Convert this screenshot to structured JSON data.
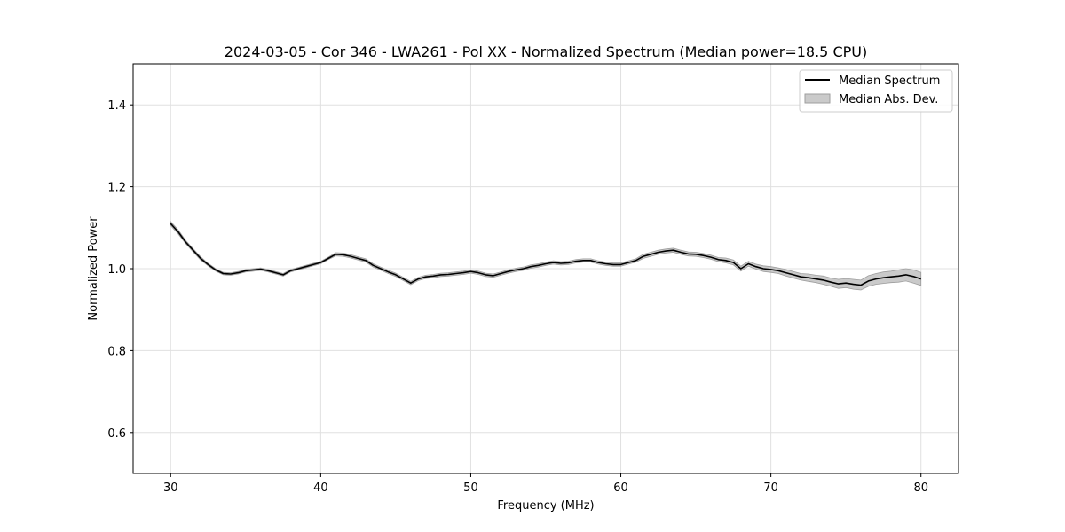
{
  "chart_data": {
    "type": "line",
    "title": "2024-03-05 - Cor 346 - LWA261 - Pol XX - Normalized Spectrum (Median power=18.5 CPU)",
    "xlabel": "Frequency (MHz)",
    "ylabel": "Normalized Power",
    "xlim": [
      27.5,
      82.5
    ],
    "ylim": [
      0.5,
      1.5
    ],
    "xticks": [
      30,
      40,
      50,
      60,
      70,
      80
    ],
    "yticks": [
      0.6,
      0.8,
      1.0,
      1.2,
      1.4
    ],
    "grid": true,
    "legend_position": "top-right",
    "legend": [
      "Median Spectrum",
      "Median Abs. Dev."
    ],
    "colors": {
      "line": "#000000",
      "band": "#9e9e9e",
      "grid": "#e0e0e0"
    },
    "series": [
      {
        "name": "Median Spectrum",
        "x": [
          30.0,
          30.5,
          31.0,
          31.5,
          32.0,
          32.5,
          33.0,
          33.5,
          34.0,
          34.5,
          35.0,
          35.5,
          36.0,
          36.5,
          37.0,
          37.5,
          38.0,
          38.5,
          39.0,
          39.5,
          40.0,
          40.5,
          41.0,
          41.5,
          42.0,
          42.5,
          43.0,
          43.5,
          44.0,
          44.5,
          45.0,
          45.5,
          46.0,
          46.5,
          47.0,
          47.5,
          48.0,
          48.5,
          49.0,
          49.5,
          50.0,
          50.5,
          51.0,
          51.5,
          52.0,
          52.5,
          53.0,
          53.5,
          54.0,
          54.5,
          55.0,
          55.5,
          56.0,
          56.5,
          57.0,
          57.5,
          58.0,
          58.5,
          59.0,
          59.5,
          60.0,
          60.5,
          61.0,
          61.5,
          62.0,
          62.5,
          63.0,
          63.5,
          64.0,
          64.5,
          65.0,
          65.5,
          66.0,
          66.5,
          67.0,
          67.5,
          68.0,
          68.5,
          69.0,
          69.5,
          70.0,
          70.5,
          71.0,
          71.5,
          72.0,
          72.5,
          73.0,
          73.5,
          74.0,
          74.5,
          75.0,
          75.5,
          76.0,
          76.5,
          77.0,
          77.5,
          78.0,
          78.5,
          79.0,
          79.5,
          80.0
        ],
        "y": [
          1.11,
          1.09,
          1.065,
          1.045,
          1.025,
          1.01,
          0.997,
          0.988,
          0.987,
          0.99,
          0.995,
          0.997,
          0.999,
          0.995,
          0.99,
          0.985,
          0.995,
          1.0,
          1.005,
          1.01,
          1.015,
          1.025,
          1.035,
          1.034,
          1.03,
          1.025,
          1.02,
          1.008,
          1.0,
          0.992,
          0.985,
          0.975,
          0.965,
          0.975,
          0.98,
          0.982,
          0.985,
          0.986,
          0.988,
          0.99,
          0.993,
          0.99,
          0.985,
          0.983,
          0.988,
          0.993,
          0.997,
          1.0,
          1.005,
          1.008,
          1.012,
          1.015,
          1.013,
          1.014,
          1.018,
          1.02,
          1.02,
          1.015,
          1.012,
          1.01,
          1.01,
          1.015,
          1.02,
          1.03,
          1.035,
          1.04,
          1.043,
          1.045,
          1.04,
          1.036,
          1.035,
          1.032,
          1.028,
          1.022,
          1.02,
          1.015,
          1.0,
          1.012,
          1.005,
          1.0,
          0.998,
          0.995,
          0.99,
          0.985,
          0.98,
          0.978,
          0.975,
          0.972,
          0.967,
          0.963,
          0.965,
          0.962,
          0.96,
          0.97,
          0.975,
          0.978,
          0.98,
          0.982,
          0.985,
          0.981,
          0.975
        ]
      }
    ],
    "band": {
      "name": "Median Abs. Dev.",
      "halfwidth": [
        0.005,
        0.005,
        0.004,
        0.004,
        0.004,
        0.003,
        0.003,
        0.003,
        0.003,
        0.003,
        0.003,
        0.003,
        0.003,
        0.003,
        0.003,
        0.003,
        0.003,
        0.003,
        0.003,
        0.003,
        0.003,
        0.003,
        0.004,
        0.004,
        0.004,
        0.004,
        0.004,
        0.004,
        0.004,
        0.004,
        0.004,
        0.004,
        0.004,
        0.004,
        0.004,
        0.004,
        0.004,
        0.004,
        0.004,
        0.004,
        0.004,
        0.004,
        0.004,
        0.004,
        0.004,
        0.004,
        0.004,
        0.004,
        0.004,
        0.004,
        0.004,
        0.004,
        0.004,
        0.004,
        0.004,
        0.004,
        0.004,
        0.004,
        0.004,
        0.004,
        0.004,
        0.004,
        0.004,
        0.005,
        0.005,
        0.005,
        0.005,
        0.005,
        0.005,
        0.005,
        0.005,
        0.005,
        0.005,
        0.005,
        0.006,
        0.006,
        0.006,
        0.006,
        0.006,
        0.007,
        0.007,
        0.007,
        0.008,
        0.008,
        0.008,
        0.009,
        0.009,
        0.01,
        0.01,
        0.011,
        0.011,
        0.012,
        0.012,
        0.013,
        0.013,
        0.014,
        0.014,
        0.015,
        0.015,
        0.016,
        0.016
      ]
    }
  }
}
